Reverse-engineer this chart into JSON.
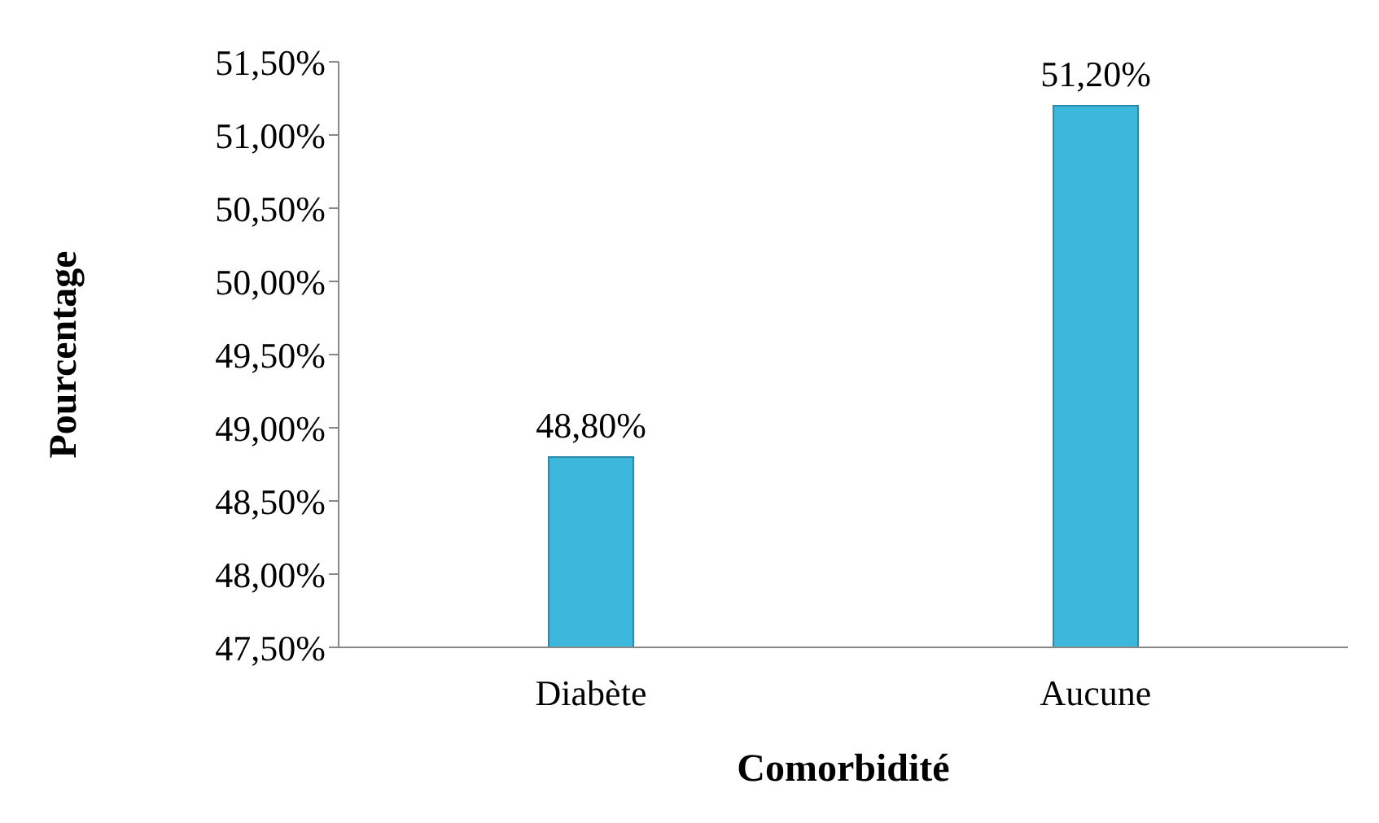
{
  "chart_data": {
    "type": "bar",
    "xlabel": "Comorbidité",
    "ylabel": "Pourcentage",
    "categories": [
      "Diabète",
      "Aucune"
    ],
    "values": [
      48.8,
      51.2
    ],
    "value_labels": [
      "48,80%",
      "51,20%"
    ],
    "color": "#3bb8dc",
    "ylim": [
      47.5,
      51.5
    ],
    "yticks": [
      {
        "value": 47.5,
        "label": "47,50%"
      },
      {
        "value": 48,
        "label": "48,00%"
      },
      {
        "value": 48.5,
        "label": "48,50%"
      },
      {
        "value": 49,
        "label": "49,00%"
      },
      {
        "value": 49.5,
        "label": "49,50%"
      },
      {
        "value": 50,
        "label": "50,00%"
      },
      {
        "value": 50.5,
        "label": "50,50%"
      },
      {
        "value": 51,
        "label": "51,00%"
      },
      {
        "value": 51.5,
        "label": "51,50%"
      }
    ],
    "grid": false,
    "legend": false
  }
}
